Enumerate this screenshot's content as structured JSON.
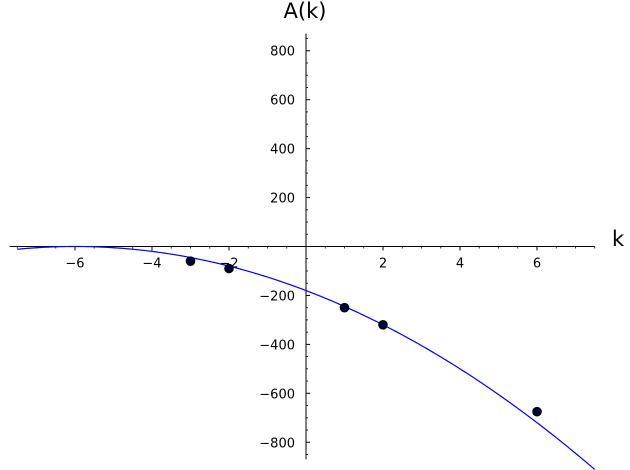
{
  "chart_data": {
    "type": "line",
    "xlabel": "k",
    "ylabel": "A(k)",
    "xlim": [
      -7.7,
      7.5
    ],
    "ylim": [
      -870,
      870
    ],
    "x_ticks": [
      -6,
      -4,
      -2,
      2,
      4,
      6
    ],
    "x_tick_labels": [
      "−6",
      "−4",
      "−2",
      "2",
      "4",
      "6"
    ],
    "y_ticks": [
      -800,
      -600,
      -400,
      -200,
      200,
      400,
      600,
      800
    ],
    "y_tick_labels": [
      "−800",
      "−600",
      "−400",
      "−200",
      "200",
      "400",
      "600",
      "800"
    ],
    "grid": false,
    "series": [
      {
        "kind": "curve",
        "color": "#0000ff",
        "formula": "A(k) = -5(k+6)^2",
        "x_range": [
          -7.5,
          7.5
        ]
      },
      {
        "kind": "points",
        "color": "#000000",
        "x": [
          -3,
          -2,
          1,
          2,
          6
        ],
        "y": [
          -60,
          -90,
          -250,
          -320,
          -675
        ]
      }
    ]
  }
}
